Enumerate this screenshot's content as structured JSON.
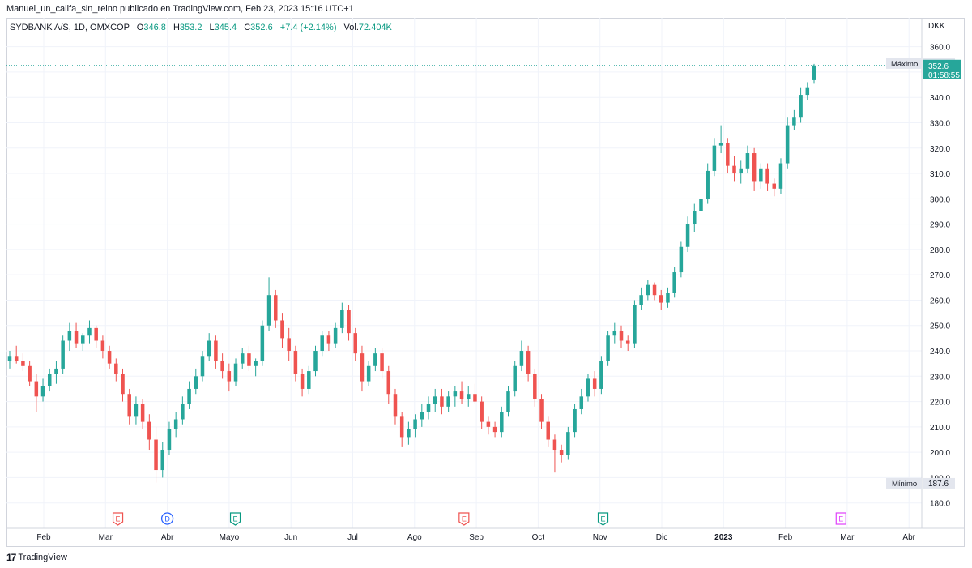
{
  "caption": "Manuel_un_califa_sin_reino publicado en TradingView.com, Feb 23, 2023 15:16 UTC+1",
  "legend": {
    "title": "SYDBANK A/S, 1D, OMXCOP",
    "o_label": "O",
    "o_value": "346.8",
    "h_label": "H",
    "h_value": "353.2",
    "l_label": "L",
    "l_value": "345.4",
    "c_label": "C",
    "c_value": "352.6",
    "change": "+7.4 (+2.14%)",
    "vol_label": "Vol.",
    "vol_value": "72.404K"
  },
  "footer": {
    "logo_text": "TradingView"
  },
  "colors": {
    "up": "#26a69a",
    "down": "#ef5350",
    "grid": "#f0f3fa",
    "axis_text": "#131722",
    "price_badge": "#26a69a"
  },
  "chart_data": {
    "type": "candlestick",
    "currency": "DKK",
    "ylim": [
      170,
      365
    ],
    "y_ticks": [
      180,
      190,
      200,
      210,
      220,
      230,
      240,
      250,
      260,
      270,
      280,
      290,
      300,
      310,
      320,
      330,
      340,
      350,
      360
    ],
    "x_ticks": [
      "Feb",
      "Mar",
      "Abr",
      "Mayo",
      "Jun",
      "Jul",
      "Ago",
      "Sep",
      "Oct",
      "Nov",
      "Dic",
      "2023",
      "Feb",
      "Mar",
      "Abr"
    ],
    "x_bold_tick": "2023",
    "grid": true,
    "max_label": "Máximo",
    "max_value": "353.2",
    "min_label": "Mínimo",
    "min_value": "187.6",
    "last_price": "352.6",
    "countdown": "01:58:55",
    "last_price_value": 352.6,
    "events": [
      {
        "letter": "E",
        "kind": "earnings-past",
        "month_index": 1.2
      },
      {
        "letter": "D",
        "kind": "dividend",
        "month_index": 2.0
      },
      {
        "letter": "E",
        "kind": "earnings-past-green",
        "month_index": 3.1
      },
      {
        "letter": "E",
        "kind": "earnings-past",
        "month_index": 6.8
      },
      {
        "letter": "E",
        "kind": "earnings-past-green",
        "month_index": 9.05
      },
      {
        "letter": "E",
        "kind": "earnings-future",
        "month_index": 12.9
      }
    ],
    "ohlc": [
      [
        236,
        240,
        233,
        238
      ],
      [
        238,
        242,
        235,
        236
      ],
      [
        236,
        239,
        232,
        234
      ],
      [
        234,
        236,
        226,
        228
      ],
      [
        228,
        231,
        216,
        222
      ],
      [
        222,
        229,
        220,
        226
      ],
      [
        226,
        233,
        224,
        231
      ],
      [
        231,
        236,
        227,
        233
      ],
      [
        233,
        246,
        231,
        244
      ],
      [
        244,
        251,
        240,
        248
      ],
      [
        248,
        251,
        241,
        243
      ],
      [
        243,
        247,
        240,
        246
      ],
      [
        246,
        252,
        243,
        249
      ],
      [
        249,
        250,
        241,
        244
      ],
      [
        244,
        246,
        237,
        240
      ],
      [
        240,
        242,
        233,
        235
      ],
      [
        235,
        237,
        228,
        231
      ],
      [
        231,
        233,
        220,
        223
      ],
      [
        223,
        225,
        211,
        214
      ],
      [
        214,
        222,
        211,
        219
      ],
      [
        219,
        221,
        209,
        212
      ],
      [
        212,
        215,
        201,
        205
      ],
      [
        205,
        210,
        188,
        193
      ],
      [
        193,
        204,
        190,
        201
      ],
      [
        201,
        212,
        199,
        209
      ],
      [
        209,
        216,
        206,
        213
      ],
      [
        213,
        222,
        211,
        219
      ],
      [
        219,
        228,
        217,
        225
      ],
      [
        225,
        233,
        223,
        230
      ],
      [
        230,
        240,
        228,
        238
      ],
      [
        238,
        247,
        236,
        244
      ],
      [
        244,
        246,
        233,
        236
      ],
      [
        236,
        239,
        229,
        232
      ],
      [
        232,
        235,
        224,
        228
      ],
      [
        228,
        237,
        226,
        235
      ],
      [
        235,
        241,
        233,
        239
      ],
      [
        239,
        242,
        232,
        234
      ],
      [
        234,
        237,
        230,
        236
      ],
      [
        236,
        252,
        234,
        250
      ],
      [
        250,
        269,
        248,
        262
      ],
      [
        262,
        264,
        249,
        252
      ],
      [
        252,
        255,
        241,
        245
      ],
      [
        245,
        249,
        236,
        240
      ],
      [
        240,
        242,
        228,
        231
      ],
      [
        231,
        233,
        222,
        225
      ],
      [
        225,
        234,
        223,
        232
      ],
      [
        232,
        242,
        230,
        240
      ],
      [
        240,
        248,
        238,
        246
      ],
      [
        246,
        248,
        240,
        243
      ],
      [
        243,
        251,
        241,
        249
      ],
      [
        249,
        259,
        247,
        256
      ],
      [
        256,
        258,
        244,
        247
      ],
      [
        247,
        249,
        236,
        239
      ],
      [
        239,
        242,
        224,
        228
      ],
      [
        228,
        236,
        226,
        234
      ],
      [
        234,
        241,
        232,
        239
      ],
      [
        239,
        241,
        229,
        232
      ],
      [
        232,
        234,
        219,
        223
      ],
      [
        223,
        225,
        211,
        214
      ],
      [
        214,
        216,
        202,
        206
      ],
      [
        206,
        212,
        203,
        209
      ],
      [
        209,
        215,
        206,
        213
      ],
      [
        213,
        219,
        210,
        216
      ],
      [
        216,
        222,
        213,
        219
      ],
      [
        219,
        225,
        216,
        222
      ],
      [
        222,
        225,
        215,
        218
      ],
      [
        218,
        224,
        216,
        222
      ],
      [
        222,
        226,
        218,
        224
      ],
      [
        224,
        228,
        219,
        221
      ],
      [
        221,
        226,
        218,
        223
      ],
      [
        223,
        227,
        219,
        220
      ],
      [
        220,
        222,
        209,
        212
      ],
      [
        212,
        214,
        207,
        210
      ],
      [
        210,
        212,
        206,
        208
      ],
      [
        208,
        218,
        206,
        216
      ],
      [
        216,
        226,
        214,
        224
      ],
      [
        224,
        236,
        222,
        234
      ],
      [
        234,
        244,
        232,
        240
      ],
      [
        240,
        242,
        228,
        231
      ],
      [
        231,
        233,
        218,
        221
      ],
      [
        221,
        223,
        209,
        212
      ],
      [
        212,
        214,
        202,
        205
      ],
      [
        205,
        207,
        192,
        201
      ],
      [
        201,
        203,
        196,
        199
      ],
      [
        199,
        210,
        197,
        208
      ],
      [
        208,
        219,
        206,
        217
      ],
      [
        217,
        225,
        215,
        222
      ],
      [
        222,
        231,
        220,
        229
      ],
      [
        229,
        232,
        222,
        225
      ],
      [
        225,
        238,
        223,
        236
      ],
      [
        236,
        248,
        234,
        246
      ],
      [
        246,
        251,
        243,
        248
      ],
      [
        248,
        250,
        241,
        244
      ],
      [
        244,
        246,
        240,
        243
      ],
      [
        243,
        260,
        241,
        258
      ],
      [
        258,
        265,
        256,
        262
      ],
      [
        262,
        268,
        260,
        266
      ],
      [
        266,
        267,
        260,
        262
      ],
      [
        262,
        264,
        256,
        259
      ],
      [
        259,
        265,
        257,
        263
      ],
      [
        263,
        273,
        261,
        271
      ],
      [
        271,
        283,
        269,
        281
      ],
      [
        281,
        293,
        279,
        290
      ],
      [
        290,
        298,
        287,
        295
      ],
      [
        295,
        303,
        293,
        300
      ],
      [
        300,
        314,
        298,
        311
      ],
      [
        311,
        324,
        309,
        321
      ],
      [
        321,
        329,
        318,
        322
      ],
      [
        322,
        324,
        310,
        313
      ],
      [
        313,
        317,
        307,
        310
      ],
      [
        310,
        315,
        306,
        312
      ],
      [
        312,
        321,
        310,
        318
      ],
      [
        318,
        320,
        303,
        307
      ],
      [
        307,
        314,
        304,
        312
      ],
      [
        312,
        314,
        303,
        306
      ],
      [
        306,
        308,
        301,
        304
      ],
      [
        304,
        316,
        302,
        314
      ],
      [
        314,
        332,
        312,
        329
      ],
      [
        329,
        335,
        327,
        332
      ],
      [
        332,
        344,
        330,
        341
      ],
      [
        341,
        346,
        339,
        344
      ],
      [
        346.8,
        353.2,
        345.4,
        352.6
      ]
    ]
  }
}
